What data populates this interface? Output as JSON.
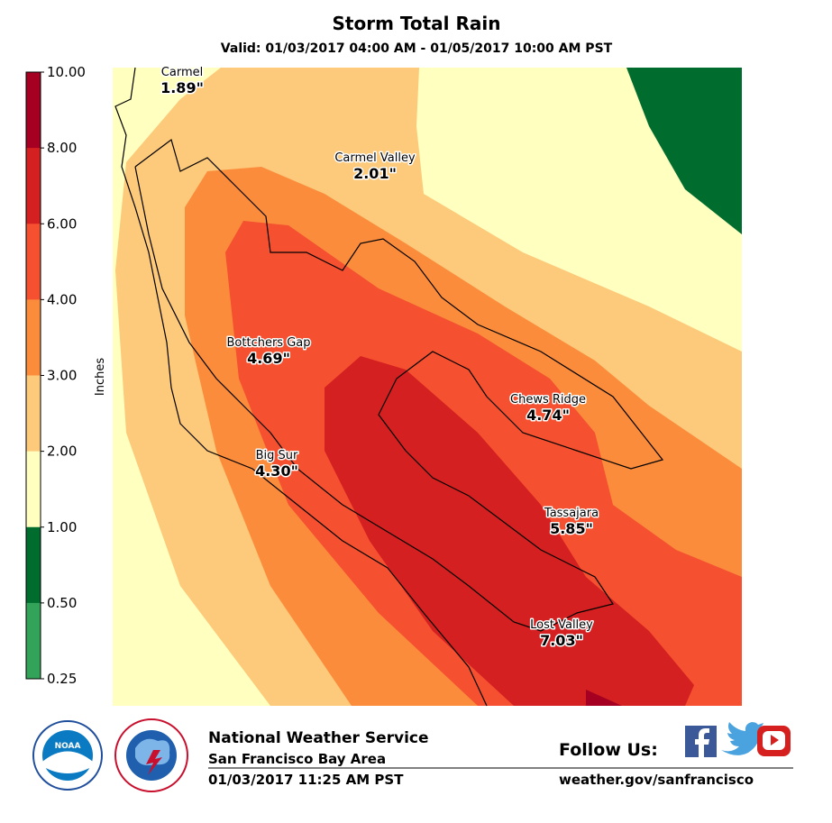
{
  "header": {
    "title": "Storm Total Rain",
    "subtitle": "Valid: 01/03/2017 04:00 AM - 01/05/2017 10:00 AM PST"
  },
  "colorbar": {
    "label": "Inches",
    "ticks": [
      "10.00",
      "8.00",
      "6.00",
      "4.00",
      "3.00",
      "2.00",
      "1.00",
      "0.50",
      "0.25"
    ],
    "colors": [
      "#a50021",
      "#d42020",
      "#f55030",
      "#fb8c3c",
      "#fdc97a",
      "#ffffc0",
      "#006d2f",
      "#34a35a"
    ]
  },
  "stations": [
    {
      "name": "Carmel",
      "value": "1.89\""
    },
    {
      "name": "Carmel Valley",
      "value": "2.01\""
    },
    {
      "name": "Bottchers Gap",
      "value": "4.69\""
    },
    {
      "name": "Chews Ridge",
      "value": "4.74\""
    },
    {
      "name": "Big Sur",
      "value": "4.30\""
    },
    {
      "name": "Tassajara",
      "value": "5.85\""
    },
    {
      "name": "Lost Valley",
      "value": "7.03\""
    }
  ],
  "logos": {
    "noaa": "NOAA"
  },
  "footer": {
    "agency": "National Weather Service",
    "office": "San Francisco Bay Area",
    "issued": "01/03/2017 11:25 AM PST",
    "follow": "Follow Us:",
    "url": "weather.gov/sanfrancisco"
  }
}
